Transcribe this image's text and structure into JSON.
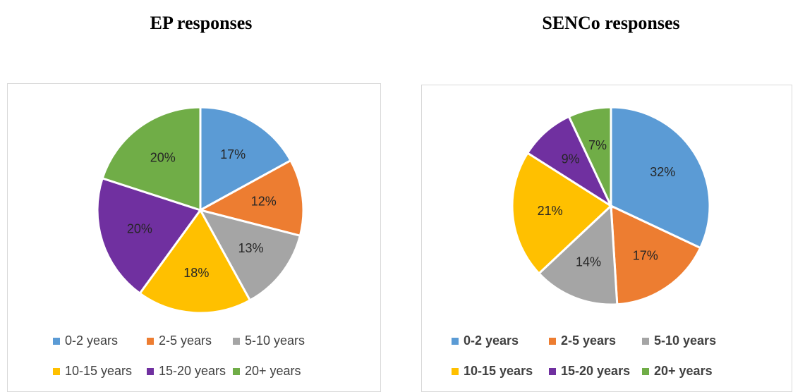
{
  "chart_data": [
    {
      "type": "pie",
      "title": "EP responses",
      "categories": [
        "0-2 years",
        "2-5 years",
        "5-10 years",
        "10-15 years",
        "15-20 years",
        "20+ years"
      ],
      "values": [
        17,
        12,
        13,
        18,
        20,
        20
      ],
      "value_labels": [
        "17%",
        "12%",
        "13%",
        "18%",
        "20%",
        "20%"
      ],
      "colors": [
        "#5b9bd5",
        "#ed7d31",
        "#a5a5a5",
        "#ffc000",
        "#7030a0",
        "#70ad47"
      ],
      "legend": "bottom"
    },
    {
      "type": "pie",
      "title": "SENCo responses",
      "categories": [
        "0-2 years",
        "2-5 years",
        "5-10 years",
        "10-15 years",
        "15-20 years",
        "20+ years"
      ],
      "values": [
        32,
        17,
        14,
        21,
        9,
        7
      ],
      "value_labels": [
        "32%",
        "17%",
        "14%",
        "21%",
        "9%",
        "7%"
      ],
      "colors": [
        "#5b9bd5",
        "#ed7d31",
        "#a5a5a5",
        "#ffc000",
        "#7030a0",
        "#70ad47"
      ],
      "legend": "bottom"
    }
  ]
}
